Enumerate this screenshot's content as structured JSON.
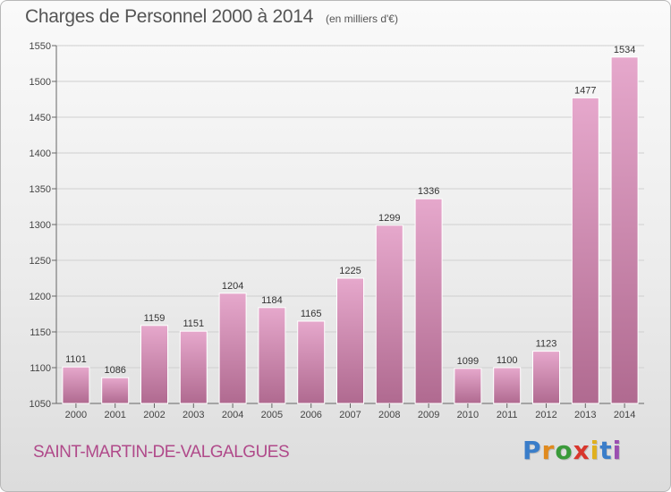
{
  "header": {
    "title": "Charges de Personnel 2000 à 2014",
    "subtitle": "(en milliers d'€)"
  },
  "footer": {
    "commune": "SAINT-MARTIN-DE-VALGALGUES",
    "brand": "Proxiti",
    "brand_letters": [
      {
        "char": "P",
        "color": "#3a7dc9"
      },
      {
        "char": "r",
        "color": "#e08a1e"
      },
      {
        "char": "o",
        "color": "#3a9a3a"
      },
      {
        "char": "x",
        "color": "#d8362c"
      },
      {
        "char": "i",
        "color": "#e0b01e"
      },
      {
        "char": "t",
        "color": "#3a7dc9"
      },
      {
        "char": "i",
        "color": "#9a4fb0"
      }
    ]
  },
  "colors": {
    "bar_top": "#e6a8cc",
    "bar_bottom": "#b06a90",
    "grid": "#cfcfcf"
  },
  "chart_data": {
    "type": "bar",
    "title": "Charges de Personnel 2000 à 2014",
    "subtitle": "(en milliers d'€)",
    "categories": [
      "2000",
      "2001",
      "2002",
      "2003",
      "2004",
      "2005",
      "2006",
      "2007",
      "2008",
      "2009",
      "2010",
      "2011",
      "2012",
      "2013",
      "2014"
    ],
    "values": [
      1101,
      1086,
      1159,
      1151,
      1204,
      1184,
      1165,
      1225,
      1299,
      1336,
      1099,
      1100,
      1123,
      1477,
      1534
    ],
    "ylim": [
      1050,
      1550
    ],
    "yticks": [
      1050,
      1100,
      1150,
      1200,
      1250,
      1300,
      1350,
      1400,
      1450,
      1500,
      1550
    ],
    "grid": true,
    "data_labels": true
  }
}
